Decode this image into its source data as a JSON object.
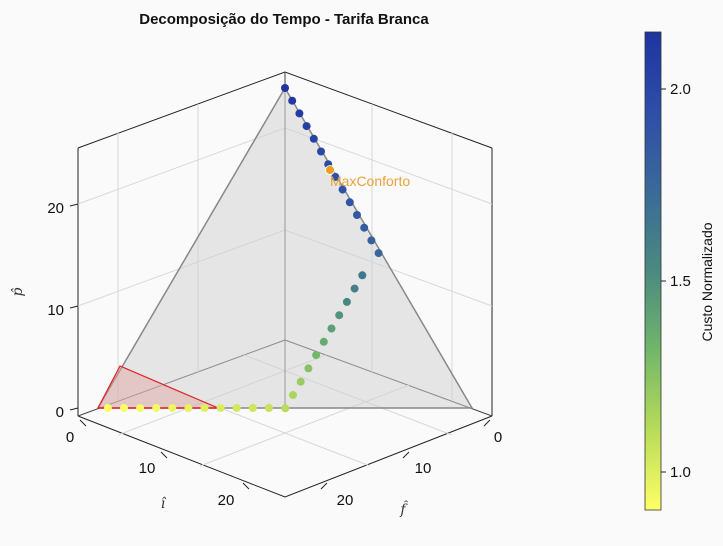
{
  "chart_data": {
    "type": "scatter",
    "title": "Decomposição do Tempo - Tarifa Branca",
    "axes": {
      "x": {
        "label": "î",
        "ticks": [
          "0",
          "10",
          "20"
        ]
      },
      "y": {
        "label": "f̂",
        "ticks": [
          "0",
          "10",
          "20"
        ]
      },
      "z": {
        "label": "p̂",
        "ticks": [
          "0",
          "10",
          "20"
        ]
      }
    },
    "annotation": "MaxConforto",
    "colorbar": {
      "label": "Custo Normalizado",
      "ticks": [
        "1.0",
        "1.5",
        "2.0"
      ],
      "range": [
        0.82,
        2.15
      ],
      "colors": [
        "#ffff66",
        "#b8dc5a",
        "#72b66a",
        "#4a8a80",
        "#3a6a98",
        "#2e4ea8",
        "#1e34a0"
      ]
    },
    "series": [
      {
        "points_f_p_cost": [
          [
            0,
            24,
            2.15
          ],
          [
            0,
            23,
            2.11
          ],
          [
            0,
            22,
            2.08
          ],
          [
            0,
            21,
            2.05
          ],
          [
            0,
            20,
            2.02
          ],
          [
            0,
            19,
            1.99
          ],
          [
            0,
            18,
            1.96
          ],
          [
            0,
            17,
            1.93
          ],
          [
            0,
            16,
            1.9
          ],
          [
            0,
            15,
            1.87
          ],
          [
            0,
            14,
            1.84
          ],
          [
            0,
            13,
            1.81
          ],
          [
            0,
            12,
            1.78
          ],
          [
            0,
            11,
            1.75
          ]
        ]
      },
      {
        "points_f_p_cost": [
          [
            1,
            10,
            1.62
          ],
          [
            2,
            9,
            1.56
          ],
          [
            3,
            8,
            1.5
          ],
          [
            4,
            7,
            1.44
          ],
          [
            5,
            6,
            1.38
          ],
          [
            6,
            5,
            1.32
          ],
          [
            7,
            4,
            1.26
          ],
          [
            8,
            3,
            1.2
          ],
          [
            9,
            2,
            1.14
          ],
          [
            10,
            1,
            1.08
          ],
          [
            11,
            0,
            1.04
          ]
        ]
      },
      {
        "points_f_p_cost": [
          [
            12,
            0,
            1.0
          ],
          [
            13,
            0,
            0.98
          ],
          [
            14,
            0,
            0.96
          ],
          [
            15,
            0,
            0.94
          ],
          [
            16,
            0,
            0.92
          ],
          [
            17,
            0,
            0.9
          ],
          [
            18,
            0,
            0.88
          ],
          [
            19,
            0,
            0.86
          ],
          [
            20,
            0,
            0.85
          ],
          [
            21,
            0,
            0.84
          ],
          [
            22,
            0,
            0.83
          ]
        ]
      }
    ]
  }
}
